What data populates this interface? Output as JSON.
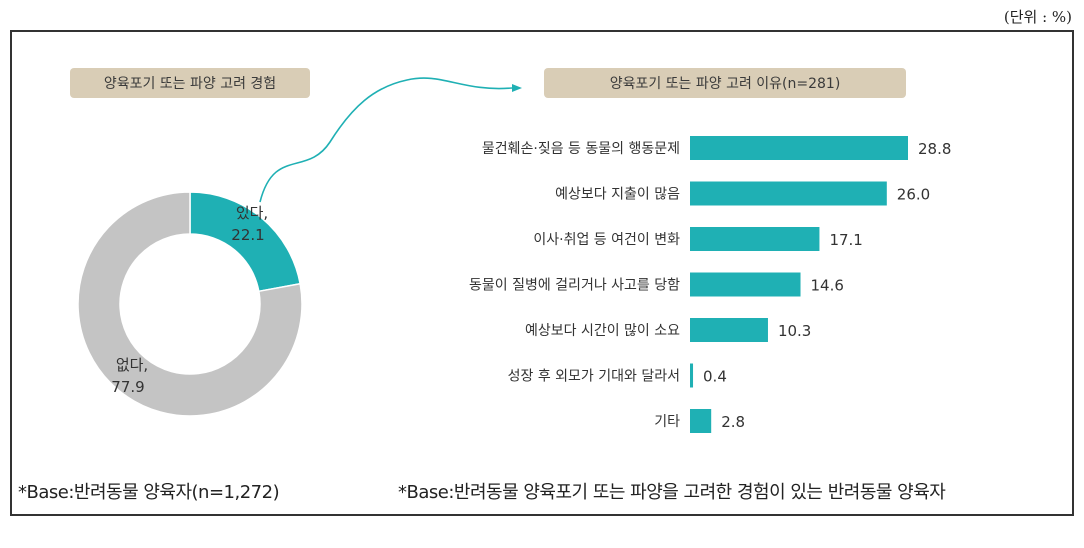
{
  "unit_label": "(단위 : %)",
  "left_panel": {
    "title": "양육포기 또는 파양 고려 경험",
    "footnote": "*Base:반려동물 양육자(n=1,272)"
  },
  "right_panel": {
    "title": "양육포기 또는 파양 고려 이유(n=281)",
    "footnote": "*Base:반려동물 양육포기 또는 파양을 고려한 경험이 있는 반려동물 양육자"
  },
  "colors": {
    "accent": "#1fb0b4",
    "grey": "#c4c4c4",
    "tag_bg": "#d9cdb6"
  },
  "chart_data": [
    {
      "type": "pie",
      "donut": true,
      "title": "양육포기 또는 파양 고려 경험",
      "slices": [
        {
          "label": "있다,",
          "value": 22.1,
          "color": "#1fb0b4"
        },
        {
          "label": "없다,",
          "value": 77.9,
          "color": "#c4c4c4"
        }
      ]
    },
    {
      "type": "bar",
      "orientation": "horizontal",
      "title": "양육포기 또는 파양 고려 이유(n=281)",
      "categories": [
        "물건훼손·짖음 등 동물의 행동문제",
        "예상보다 지출이 많음",
        "이사·취업 등 여건이 변화",
        "동물이 질병에 걸리거나 사고를 당함",
        "예상보다 시간이 많이 소요",
        "성장 후 외모가 기대와 달라서",
        "기타"
      ],
      "values": [
        28.8,
        26.0,
        17.1,
        14.6,
        10.3,
        0.4,
        2.8
      ],
      "value_labels": [
        "28.8",
        "26.0",
        "17.1",
        "14.6",
        "10.3",
        "0.4",
        "2.8"
      ],
      "color": "#1fb0b4",
      "xlim": [
        0,
        28.8
      ]
    }
  ]
}
